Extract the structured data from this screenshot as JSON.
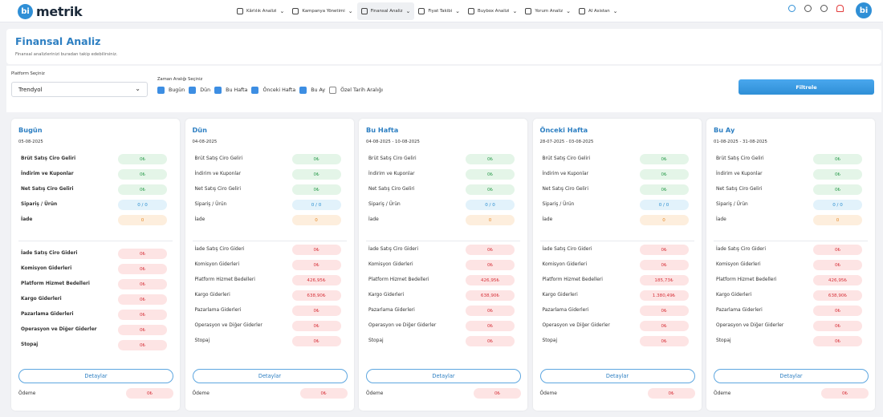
{
  "app": {
    "logo_mark": "bi",
    "logo_text": "metrik",
    "avatar": "bi"
  },
  "nav": [
    {
      "label": "Kârlılık Analizi",
      "icon": "chart-bar-icon",
      "active": false
    },
    {
      "label": "Kampanya Yönetimi",
      "icon": "calendar-icon",
      "active": false
    },
    {
      "label": "Finansal Analiz",
      "icon": "finance-icon",
      "active": true
    },
    {
      "label": "Fiyat Takibi",
      "icon": "tag-icon",
      "active": false
    },
    {
      "label": "Buybox Analizi",
      "icon": "trend-icon",
      "active": false
    },
    {
      "label": "Yorum Analiz",
      "icon": "comment-icon",
      "active": false
    },
    {
      "label": "AI Asistan",
      "icon": "ai-icon",
      "active": false
    }
  ],
  "header": {
    "title": "Finansal Analiz",
    "subtitle": "Finansal analizlerinizi buradan takip edebilirsiniz."
  },
  "filters": {
    "platform_label": "Platform Seçiniz",
    "platform_value": "Trendyol",
    "range_label": "Zaman Aralığı Seçiniz",
    "ranges": [
      {
        "label": "Bugün",
        "checked": true
      },
      {
        "label": "Dün",
        "checked": true
      },
      {
        "label": "Bu Hafta",
        "checked": true
      },
      {
        "label": "Önceki Hafta",
        "checked": true
      },
      {
        "label": "Bu Ay",
        "checked": true
      },
      {
        "label": "Özel Tarih Aralığı",
        "checked": false
      }
    ],
    "filter_button": "Filtrele"
  },
  "card_labels": {
    "details_button": "Detaylar",
    "payment_label": "Ödeme",
    "revenue": [
      "Brüt Satış Ciro Geliri",
      "İndirim ve Kuponlar",
      "Net Satış Ciro Geliri",
      "Sipariş / Ürün",
      "İade"
    ],
    "expenses": [
      "İade Satış Ciro Gideri",
      "Komisyon Giderleri",
      "Platform Hizmet Bedelleri",
      "Kargo Giderleri",
      "Pazarlama Giderleri",
      "Operasyon ve Diğer Giderler",
      "Stopaj"
    ]
  },
  "cards": [
    {
      "title": "Bugün",
      "date": "05-08-2025",
      "revenue": [
        "0₺",
        "0₺",
        "0₺",
        "0 / 0",
        "0"
      ],
      "expenses": [
        "0₺",
        "0₺",
        "0₺",
        "0₺",
        "0₺",
        "0₺",
        "0₺"
      ],
      "payment": "0₺"
    },
    {
      "title": "Dün",
      "date": "04-08-2025",
      "revenue": [
        "0₺",
        "0₺",
        "0₺",
        "0 / 0",
        "0"
      ],
      "expenses": [
        "0₺",
        "0₺",
        "426,95₺",
        "638,90₺",
        "0₺",
        "0₺",
        "0₺"
      ],
      "payment": "0₺"
    },
    {
      "title": "Bu Hafta",
      "date": "04-08-2025 - 10-08-2025",
      "revenue": [
        "0₺",
        "0₺",
        "0₺",
        "0 / 0",
        "0"
      ],
      "expenses": [
        "0₺",
        "0₺",
        "426,95₺",
        "638,90₺",
        "0₺",
        "0₺",
        "0₺"
      ],
      "payment": "0₺"
    },
    {
      "title": "Önceki Hafta",
      "date": "28-07-2025 - 03-08-2025",
      "revenue": [
        "0₺",
        "0₺",
        "0₺",
        "0 / 0",
        "0"
      ],
      "expenses": [
        "0₺",
        "0₺",
        "185,73₺",
        "1.380,49₺",
        "0₺",
        "0₺",
        "0₺"
      ],
      "payment": "0₺"
    },
    {
      "title": "Bu Ay",
      "date": "01-08-2025 - 31-08-2025",
      "revenue": [
        "0₺",
        "0₺",
        "0₺",
        "0 / 0",
        "0"
      ],
      "expenses": [
        "0₺",
        "0₺",
        "426,95₺",
        "638,90₺",
        "0₺",
        "0₺",
        "0₺"
      ],
      "payment": "0₺"
    }
  ]
}
